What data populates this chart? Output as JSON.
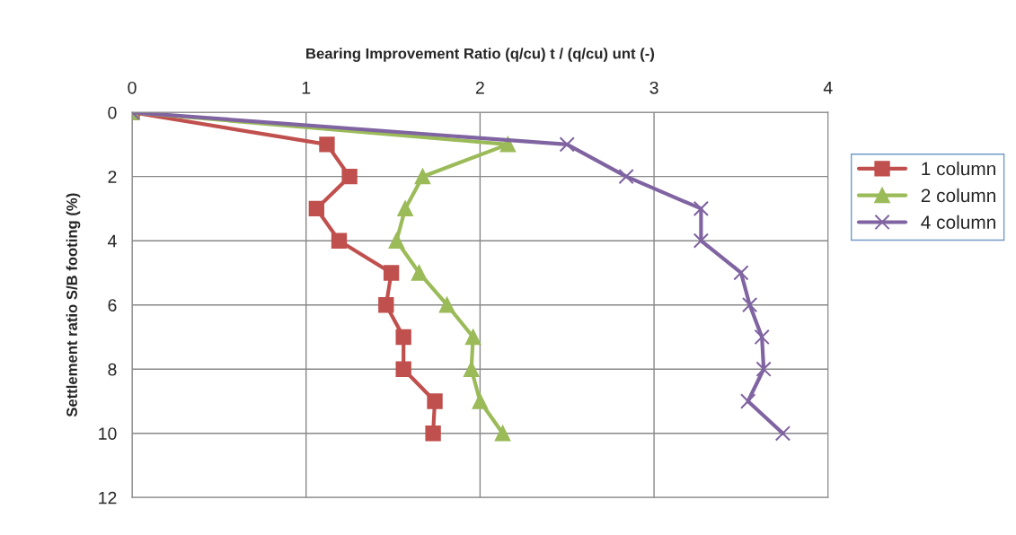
{
  "chart_data": {
    "type": "line",
    "orientation": "horizontal",
    "xlabel": "Bearing Improvement Ratio (q/cu) t / (q/cu) unt (-)",
    "ylabel": "Settlement ratio S/B footing (%)",
    "x": [
      0,
      1,
      2,
      3,
      4,
      5,
      6,
      7,
      8,
      9,
      10
    ],
    "series": [
      {
        "name": "1 column",
        "color": "#c0504d",
        "marker": "square",
        "values": [
          0,
          1.12,
          1.25,
          1.06,
          1.19,
          1.49,
          1.46,
          1.56,
          1.56,
          1.74,
          1.73
        ]
      },
      {
        "name": "2 column",
        "color": "#9bbb59",
        "marker": "triangle",
        "values": [
          0,
          2.16,
          1.67,
          1.57,
          1.52,
          1.65,
          1.81,
          1.96,
          1.95,
          2.0,
          2.13
        ]
      },
      {
        "name": "4 column",
        "color": "#8064a2",
        "marker": "cross",
        "values": [
          0,
          2.5,
          2.84,
          3.27,
          3.27,
          3.5,
          3.55,
          3.62,
          3.63,
          3.54,
          3.74
        ]
      }
    ],
    "xlim": [
      0,
      4
    ],
    "xticks": [
      0,
      1,
      2,
      3,
      4
    ],
    "ylim": [
      12,
      0
    ],
    "yticks": [
      0,
      2,
      4,
      6,
      8,
      10,
      12
    ],
    "grid": true,
    "legend": "right",
    "line_style": "solid"
  }
}
